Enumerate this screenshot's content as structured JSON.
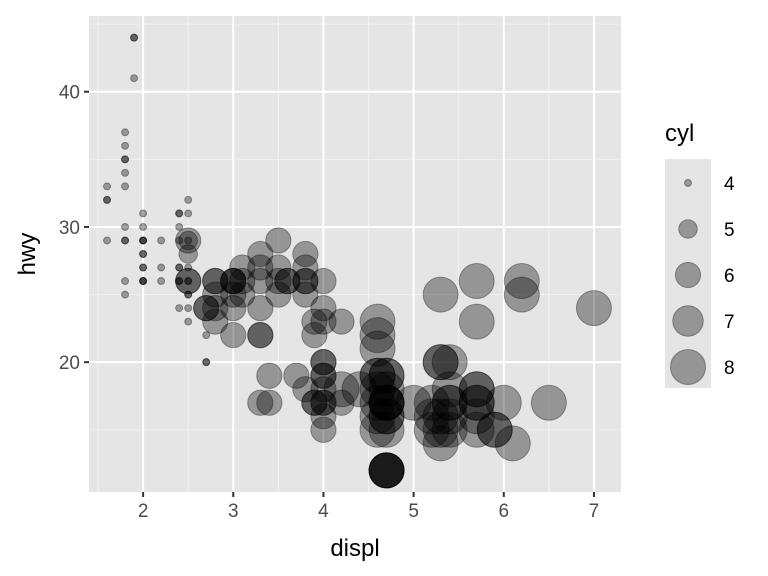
{
  "chart_data": {
    "type": "scatter",
    "xlabel": "displ",
    "ylabel": "hwy",
    "xlim": [
      1.4,
      7.3
    ],
    "ylim": [
      10.4,
      45.6
    ],
    "x_ticks": [
      2,
      3,
      4,
      5,
      6,
      7
    ],
    "y_ticks": [
      20,
      30,
      40
    ],
    "grid": true,
    "point_color": "#000000",
    "point_alpha": 0.35,
    "panel_color": "#e5e5e5",
    "legend": {
      "title": "cyl",
      "position": "right",
      "entries": [
        {
          "label": "4",
          "value": 4
        },
        {
          "label": "5",
          "value": 5
        },
        {
          "label": "6",
          "value": 6
        },
        {
          "label": "7",
          "value": 7
        },
        {
          "label": "8",
          "value": 8
        }
      ]
    },
    "points": [
      {
        "x": 1.9,
        "y": 44,
        "cyl": 4
      },
      {
        "x": 1.9,
        "y": 44,
        "cyl": 4
      },
      {
        "x": 1.9,
        "y": 41,
        "cyl": 4
      },
      {
        "x": 1.8,
        "y": 37,
        "cyl": 4
      },
      {
        "x": 1.8,
        "y": 36,
        "cyl": 4
      },
      {
        "x": 1.8,
        "y": 35,
        "cyl": 4
      },
      {
        "x": 1.8,
        "y": 35,
        "cyl": 4
      },
      {
        "x": 1.8,
        "y": 34,
        "cyl": 4
      },
      {
        "x": 1.8,
        "y": 33,
        "cyl": 4
      },
      {
        "x": 1.6,
        "y": 33,
        "cyl": 4
      },
      {
        "x": 1.6,
        "y": 32,
        "cyl": 4
      },
      {
        "x": 1.6,
        "y": 32,
        "cyl": 4
      },
      {
        "x": 1.6,
        "y": 29,
        "cyl": 4
      },
      {
        "x": 1.8,
        "y": 30,
        "cyl": 4
      },
      {
        "x": 1.8,
        "y": 29,
        "cyl": 4
      },
      {
        "x": 1.8,
        "y": 29,
        "cyl": 4
      },
      {
        "x": 1.8,
        "y": 26,
        "cyl": 4
      },
      {
        "x": 1.8,
        "y": 25,
        "cyl": 4
      },
      {
        "x": 2.0,
        "y": 31,
        "cyl": 4
      },
      {
        "x": 2.0,
        "y": 30,
        "cyl": 4
      },
      {
        "x": 2.0,
        "y": 29,
        "cyl": 4
      },
      {
        "x": 2.0,
        "y": 29,
        "cyl": 4
      },
      {
        "x": 2.0,
        "y": 29,
        "cyl": 4
      },
      {
        "x": 2.0,
        "y": 28,
        "cyl": 4
      },
      {
        "x": 2.0,
        "y": 28,
        "cyl": 4
      },
      {
        "x": 2.0,
        "y": 27,
        "cyl": 4
      },
      {
        "x": 2.0,
        "y": 27,
        "cyl": 4
      },
      {
        "x": 2.0,
        "y": 26,
        "cyl": 4
      },
      {
        "x": 2.0,
        "y": 26,
        "cyl": 4
      },
      {
        "x": 2.0,
        "y": 26,
        "cyl": 4
      },
      {
        "x": 2.2,
        "y": 29,
        "cyl": 4
      },
      {
        "x": 2.2,
        "y": 27,
        "cyl": 4
      },
      {
        "x": 2.2,
        "y": 26,
        "cyl": 4
      },
      {
        "x": 2.4,
        "y": 31,
        "cyl": 4
      },
      {
        "x": 2.4,
        "y": 31,
        "cyl": 4
      },
      {
        "x": 2.4,
        "y": 30,
        "cyl": 4
      },
      {
        "x": 2.4,
        "y": 29,
        "cyl": 4
      },
      {
        "x": 2.4,
        "y": 27,
        "cyl": 4
      },
      {
        "x": 2.4,
        "y": 27,
        "cyl": 4
      },
      {
        "x": 2.4,
        "y": 26,
        "cyl": 4
      },
      {
        "x": 2.4,
        "y": 26,
        "cyl": 4
      },
      {
        "x": 2.4,
        "y": 24,
        "cyl": 4
      },
      {
        "x": 2.5,
        "y": 32,
        "cyl": 4
      },
      {
        "x": 2.5,
        "y": 31,
        "cyl": 4
      },
      {
        "x": 2.5,
        "y": 29,
        "cyl": 4
      },
      {
        "x": 2.5,
        "y": 27,
        "cyl": 4
      },
      {
        "x": 2.5,
        "y": 26,
        "cyl": 4
      },
      {
        "x": 2.5,
        "y": 26,
        "cyl": 4
      },
      {
        "x": 2.5,
        "y": 25,
        "cyl": 4
      },
      {
        "x": 2.5,
        "y": 25,
        "cyl": 4
      },
      {
        "x": 2.5,
        "y": 24,
        "cyl": 4
      },
      {
        "x": 2.5,
        "y": 23,
        "cyl": 4
      },
      {
        "x": 2.7,
        "y": 22,
        "cyl": 4
      },
      {
        "x": 2.7,
        "y": 20,
        "cyl": 4
      },
      {
        "x": 2.7,
        "y": 20,
        "cyl": 4
      },
      {
        "x": 2.5,
        "y": 29,
        "cyl": 5
      },
      {
        "x": 2.5,
        "y": 28,
        "cyl": 5
      },
      {
        "x": 2.5,
        "y": 29,
        "cyl": 6
      },
      {
        "x": 2.5,
        "y": 26,
        "cyl": 6
      },
      {
        "x": 2.5,
        "y": 26,
        "cyl": 6
      },
      {
        "x": 2.8,
        "y": 26,
        "cyl": 6
      },
      {
        "x": 2.8,
        "y": 26,
        "cyl": 6
      },
      {
        "x": 2.8,
        "y": 25,
        "cyl": 6
      },
      {
        "x": 2.8,
        "y": 24,
        "cyl": 6
      },
      {
        "x": 2.7,
        "y": 24,
        "cyl": 6
      },
      {
        "x": 2.7,
        "y": 24,
        "cyl": 6
      },
      {
        "x": 2.8,
        "y": 23,
        "cyl": 6
      },
      {
        "x": 3.0,
        "y": 26,
        "cyl": 6
      },
      {
        "x": 3.0,
        "y": 26,
        "cyl": 6
      },
      {
        "x": 3.0,
        "y": 26,
        "cyl": 6
      },
      {
        "x": 3.0,
        "y": 25,
        "cyl": 6
      },
      {
        "x": 3.0,
        "y": 24,
        "cyl": 6
      },
      {
        "x": 3.0,
        "y": 22,
        "cyl": 6
      },
      {
        "x": 3.1,
        "y": 27,
        "cyl": 6
      },
      {
        "x": 3.1,
        "y": 26,
        "cyl": 6
      },
      {
        "x": 3.1,
        "y": 25,
        "cyl": 6
      },
      {
        "x": 3.3,
        "y": 28,
        "cyl": 6
      },
      {
        "x": 3.3,
        "y": 27,
        "cyl": 6
      },
      {
        "x": 3.3,
        "y": 26,
        "cyl": 6
      },
      {
        "x": 3.3,
        "y": 24,
        "cyl": 6
      },
      {
        "x": 3.3,
        "y": 22,
        "cyl": 6
      },
      {
        "x": 3.3,
        "y": 22,
        "cyl": 6
      },
      {
        "x": 3.3,
        "y": 17,
        "cyl": 6
      },
      {
        "x": 3.4,
        "y": 19,
        "cyl": 6
      },
      {
        "x": 3.4,
        "y": 17,
        "cyl": 6
      },
      {
        "x": 3.5,
        "y": 29,
        "cyl": 6
      },
      {
        "x": 3.5,
        "y": 27,
        "cyl": 6
      },
      {
        "x": 3.5,
        "y": 26,
        "cyl": 6
      },
      {
        "x": 3.5,
        "y": 25,
        "cyl": 6
      },
      {
        "x": 3.6,
        "y": 26,
        "cyl": 6
      },
      {
        "x": 3.6,
        "y": 26,
        "cyl": 6
      },
      {
        "x": 3.7,
        "y": 19,
        "cyl": 6
      },
      {
        "x": 3.8,
        "y": 28,
        "cyl": 6
      },
      {
        "x": 3.8,
        "y": 27,
        "cyl": 6
      },
      {
        "x": 3.8,
        "y": 26,
        "cyl": 6
      },
      {
        "x": 3.8,
        "y": 26,
        "cyl": 6
      },
      {
        "x": 3.8,
        "y": 25,
        "cyl": 6
      },
      {
        "x": 3.8,
        "y": 18,
        "cyl": 6
      },
      {
        "x": 3.9,
        "y": 23,
        "cyl": 6
      },
      {
        "x": 3.9,
        "y": 22,
        "cyl": 6
      },
      {
        "x": 3.9,
        "y": 17,
        "cyl": 6
      },
      {
        "x": 3.9,
        "y": 17,
        "cyl": 6
      },
      {
        "x": 4.0,
        "y": 26,
        "cyl": 6
      },
      {
        "x": 4.0,
        "y": 24,
        "cyl": 6
      },
      {
        "x": 4.0,
        "y": 23,
        "cyl": 6
      },
      {
        "x": 4.0,
        "y": 20,
        "cyl": 6
      },
      {
        "x": 4.0,
        "y": 20,
        "cyl": 6
      },
      {
        "x": 4.0,
        "y": 19,
        "cyl": 6
      },
      {
        "x": 4.0,
        "y": 19,
        "cyl": 6
      },
      {
        "x": 4.0,
        "y": 18,
        "cyl": 6
      },
      {
        "x": 4.0,
        "y": 17,
        "cyl": 6
      },
      {
        "x": 4.0,
        "y": 17,
        "cyl": 6
      },
      {
        "x": 4.0,
        "y": 16,
        "cyl": 6
      },
      {
        "x": 4.0,
        "y": 15,
        "cyl": 6
      },
      {
        "x": 4.2,
        "y": 23,
        "cyl": 6
      },
      {
        "x": 4.2,
        "y": 17,
        "cyl": 6
      },
      {
        "x": 4.2,
        "y": 18,
        "cyl": 8
      },
      {
        "x": 4.4,
        "y": 18,
        "cyl": 8
      },
      {
        "x": 4.6,
        "y": 23,
        "cyl": 8
      },
      {
        "x": 4.6,
        "y": 22,
        "cyl": 8
      },
      {
        "x": 4.6,
        "y": 21,
        "cyl": 8
      },
      {
        "x": 4.6,
        "y": 19,
        "cyl": 8
      },
      {
        "x": 4.6,
        "y": 19,
        "cyl": 8
      },
      {
        "x": 4.6,
        "y": 18,
        "cyl": 8
      },
      {
        "x": 4.6,
        "y": 17,
        "cyl": 8
      },
      {
        "x": 4.6,
        "y": 16,
        "cyl": 8
      },
      {
        "x": 4.6,
        "y": 15,
        "cyl": 8
      },
      {
        "x": 4.7,
        "y": 19,
        "cyl": 8
      },
      {
        "x": 4.7,
        "y": 19,
        "cyl": 8
      },
      {
        "x": 4.7,
        "y": 18,
        "cyl": 8
      },
      {
        "x": 4.7,
        "y": 17,
        "cyl": 8
      },
      {
        "x": 4.7,
        "y": 17,
        "cyl": 8
      },
      {
        "x": 4.7,
        "y": 17,
        "cyl": 8
      },
      {
        "x": 4.7,
        "y": 17,
        "cyl": 8
      },
      {
        "x": 4.7,
        "y": 16,
        "cyl": 8
      },
      {
        "x": 4.7,
        "y": 16,
        "cyl": 8
      },
      {
        "x": 4.7,
        "y": 15,
        "cyl": 8
      },
      {
        "x": 4.7,
        "y": 12,
        "cyl": 8
      },
      {
        "x": 4.7,
        "y": 12,
        "cyl": 8
      },
      {
        "x": 4.7,
        "y": 12,
        "cyl": 8
      },
      {
        "x": 4.7,
        "y": 12,
        "cyl": 8
      },
      {
        "x": 4.7,
        "y": 12,
        "cyl": 8
      },
      {
        "x": 5.0,
        "y": 17,
        "cyl": 8
      },
      {
        "x": 5.2,
        "y": 17,
        "cyl": 8
      },
      {
        "x": 5.2,
        "y": 16,
        "cyl": 8
      },
      {
        "x": 5.2,
        "y": 15,
        "cyl": 8
      },
      {
        "x": 5.3,
        "y": 20,
        "cyl": 8
      },
      {
        "x": 5.3,
        "y": 20,
        "cyl": 8
      },
      {
        "x": 5.3,
        "y": 16,
        "cyl": 8
      },
      {
        "x": 5.3,
        "y": 15,
        "cyl": 8
      },
      {
        "x": 5.3,
        "y": 14,
        "cyl": 8
      },
      {
        "x": 5.4,
        "y": 20,
        "cyl": 8
      },
      {
        "x": 5.4,
        "y": 18,
        "cyl": 8
      },
      {
        "x": 5.4,
        "y": 17,
        "cyl": 8
      },
      {
        "x": 5.4,
        "y": 17,
        "cyl": 8
      },
      {
        "x": 5.4,
        "y": 16,
        "cyl": 8
      },
      {
        "x": 5.4,
        "y": 15,
        "cyl": 8
      },
      {
        "x": 5.3,
        "y": 25,
        "cyl": 8
      },
      {
        "x": 5.7,
        "y": 26,
        "cyl": 8
      },
      {
        "x": 5.7,
        "y": 23,
        "cyl": 8
      },
      {
        "x": 5.7,
        "y": 18,
        "cyl": 8
      },
      {
        "x": 5.7,
        "y": 18,
        "cyl": 8
      },
      {
        "x": 5.7,
        "y": 17,
        "cyl": 8
      },
      {
        "x": 5.7,
        "y": 17,
        "cyl": 8
      },
      {
        "x": 5.7,
        "y": 16,
        "cyl": 8
      },
      {
        "x": 5.7,
        "y": 15,
        "cyl": 8
      },
      {
        "x": 5.9,
        "y": 15,
        "cyl": 8
      },
      {
        "x": 5.9,
        "y": 15,
        "cyl": 8
      },
      {
        "x": 6.0,
        "y": 17,
        "cyl": 8
      },
      {
        "x": 6.1,
        "y": 14,
        "cyl": 8
      },
      {
        "x": 6.2,
        "y": 26,
        "cyl": 8
      },
      {
        "x": 6.2,
        "y": 25,
        "cyl": 8
      },
      {
        "x": 6.5,
        "y": 17,
        "cyl": 8
      },
      {
        "x": 7.0,
        "y": 24,
        "cyl": 8
      }
    ]
  }
}
